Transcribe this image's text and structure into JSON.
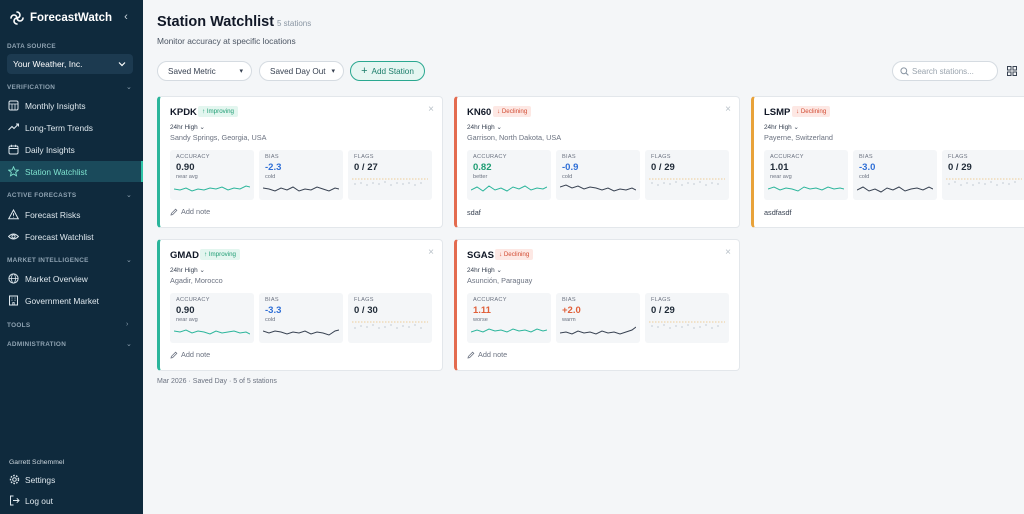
{
  "app": {
    "name": "ForecastWatch"
  },
  "sidebar": {
    "data_source_label": "DATA SOURCE",
    "data_source_value": "Your Weather, Inc.",
    "sections": [
      {
        "label": "VERIFICATION"
      },
      {
        "label": "ACTIVE FORECASTS"
      },
      {
        "label": "MARKET INTELLIGENCE"
      },
      {
        "label": "TOOLS"
      },
      {
        "label": "ADMINISTRATION"
      }
    ],
    "items": [
      {
        "label": "Monthly Insights",
        "icon": "calendar-grid-icon"
      },
      {
        "label": "Long-Term Trends",
        "icon": "trend-line-icon"
      },
      {
        "label": "Daily Insights",
        "icon": "calendar-icon"
      },
      {
        "label": "Station Watchlist",
        "icon": "star-icon",
        "active": true
      },
      {
        "label": "Forecast Risks",
        "icon": "warning-icon"
      },
      {
        "label": "Forecast Watchlist",
        "icon": "eye-icon"
      },
      {
        "label": "Market Overview",
        "icon": "globe-icon"
      },
      {
        "label": "Government Market",
        "icon": "building-icon"
      }
    ],
    "user_name": "Garrett Schemmel",
    "settings_label": "Settings",
    "logout_label": "Log out"
  },
  "header": {
    "title": "Station Watchlist",
    "count": "5 stations",
    "subtitle": "Monitor accuracy at specific locations"
  },
  "toolbar": {
    "metric_label": "Saved Metric",
    "day_out_label": "Saved Day Out",
    "add_station_label": "Add Station",
    "search_placeholder": "Search stations..."
  },
  "tile_labels": {
    "accuracy": "ACCURACY",
    "bias": "BIAS",
    "flags": "FLAGS"
  },
  "add_note_label": "Add note",
  "stations": [
    {
      "code": "KPDK",
      "trend": "↑ Improving",
      "metric": "24hr High",
      "location": "Sandy Springs, Georgia, USA",
      "accuracy": "0.90",
      "accuracy_note": "near avg",
      "bias": "-2.3",
      "bias_note": "cold",
      "flags": "0 / 27",
      "note": ""
    },
    {
      "code": "KN60",
      "trend": "↓ Declining",
      "metric": "24hr High",
      "location": "Garrison, North Dakota, USA",
      "accuracy": "0.82",
      "accuracy_note": "better",
      "bias": "-0.9",
      "bias_note": "cold",
      "flags": "0 / 29",
      "note": "sdaf"
    },
    {
      "code": "LSMP",
      "trend": "↓ Declining",
      "metric": "24hr High",
      "location": "Payerne, Switzerland",
      "accuracy": "1.01",
      "accuracy_note": "near avg",
      "bias": "-3.0",
      "bias_note": "cold",
      "flags": "0 / 29",
      "note": "asdfasdf"
    },
    {
      "code": "GMAD",
      "trend": "↑ Improving",
      "metric": "24hr High",
      "location": "Agadir, Morocco",
      "accuracy": "0.90",
      "accuracy_note": "near avg",
      "bias": "-3.3",
      "bias_note": "cold",
      "flags": "0 / 30",
      "note": ""
    },
    {
      "code": "SGAS",
      "trend": "↓ Declining",
      "metric": "24hr High",
      "location": "Asunción, Paraguay",
      "accuracy": "1.11",
      "accuracy_note": "worse",
      "bias": "+2.0",
      "bias_note": "warm",
      "flags": "0 / 29",
      "note": ""
    }
  ],
  "footer": "Mar 2026 · Saved Day · 5 of 5 stations",
  "colors": {
    "sidebar_bg": "#0f2a3d",
    "accent": "#2bb59b",
    "improving": "#1c9c72",
    "declining": "#d24c33",
    "bias_cold": "#2f6fd6",
    "bias_warm": "#e0603a"
  }
}
